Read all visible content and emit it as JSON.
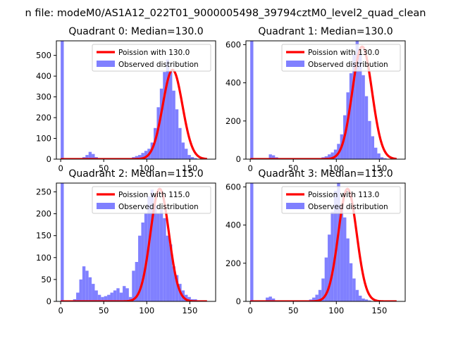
{
  "figure": {
    "suptitle": "n file: modeM0/AS1A12_022T01_9000005498_39794cztM0_level2_quad_clean"
  },
  "colors": {
    "poisson_line": "#ff0000",
    "observed_bars": "#8080ff",
    "axes": "#000000"
  },
  "chart_data": [
    {
      "type": "bar",
      "title": "Quadrant 0: Median=130.0",
      "xlim": [
        -5,
        180
      ],
      "ylim": [
        0,
        570
      ],
      "xticks": [
        0,
        50,
        100,
        150
      ],
      "yticks": [
        0,
        100,
        200,
        300,
        400,
        500
      ],
      "legend": {
        "placement": "top-right",
        "entries": [
          "Poission with 130.0",
          "Observed distribution"
        ]
      },
      "poisson_mean": 130.0,
      "poisson_peak": 430,
      "poisson_range": [
        0,
        170
      ],
      "observed": {
        "bin_width": 3.6,
        "bin_start": 0,
        "values": [
          570,
          0,
          0,
          0,
          0,
          0,
          0,
          10,
          20,
          35,
          25,
          10,
          5,
          0,
          0,
          0,
          0,
          0,
          0,
          0,
          0,
          0,
          5,
          10,
          15,
          20,
          30,
          40,
          50,
          80,
          150,
          250,
          340,
          420,
          480,
          420,
          330,
          240,
          150,
          80,
          50,
          20,
          10,
          5
        ]
      }
    },
    {
      "type": "bar",
      "title": "Quadrant 1: Median=130.0",
      "xlim": [
        -5,
        180
      ],
      "ylim": [
        0,
        620
      ],
      "xticks": [
        0,
        50,
        100,
        150
      ],
      "yticks": [
        0,
        200,
        400,
        600
      ],
      "legend": {
        "placement": "top-right",
        "entries": [
          "Poission with 130.0",
          "Observed distribution"
        ]
      },
      "poisson_mean": 130.0,
      "poisson_peak": 590,
      "poisson_range": [
        0,
        170
      ],
      "observed": {
        "bin_width": 3.6,
        "bin_start": 0,
        "values": [
          620,
          0,
          0,
          0,
          0,
          0,
          25,
          20,
          10,
          5,
          0,
          0,
          0,
          0,
          0,
          0,
          0,
          0,
          0,
          0,
          0,
          0,
          5,
          10,
          15,
          25,
          35,
          50,
          80,
          130,
          230,
          350,
          450,
          550,
          620,
          550,
          440,
          330,
          200,
          120,
          60,
          30,
          10,
          5
        ]
      }
    },
    {
      "type": "bar",
      "title": "Quadrant 2: Median=115.0",
      "xlim": [
        -5,
        180
      ],
      "ylim": [
        0,
        270
      ],
      "xticks": [
        0,
        50,
        100,
        150
      ],
      "yticks": [
        0,
        50,
        100,
        150,
        200,
        250
      ],
      "legend": {
        "placement": "top-right",
        "entries": [
          "Poission with 115.0",
          "Observed distribution"
        ]
      },
      "poisson_mean": 115.0,
      "poisson_peak": 257,
      "poisson_range": [
        0,
        170
      ],
      "observed": {
        "bin_width": 3.6,
        "bin_start": 0,
        "values": [
          270,
          0,
          0,
          0,
          5,
          20,
          50,
          80,
          70,
          55,
          40,
          25,
          15,
          10,
          12,
          15,
          20,
          25,
          30,
          20,
          35,
          30,
          10,
          70,
          90,
          150,
          180,
          200,
          240,
          255,
          220,
          200,
          210,
          190,
          150,
          130,
          80,
          60,
          40,
          25,
          15,
          10,
          5,
          5
        ]
      }
    },
    {
      "type": "bar",
      "title": "Quadrant 3: Median=113.0",
      "xlim": [
        -5,
        180
      ],
      "ylim": [
        0,
        620
      ],
      "xticks": [
        0,
        50,
        100,
        150
      ],
      "yticks": [
        0,
        200,
        400,
        600
      ],
      "legend": {
        "placement": "top-right",
        "entries": [
          "Poission with 113.0",
          "Observed distribution"
        ]
      },
      "poisson_mean": 113.0,
      "poisson_peak": 590,
      "poisson_range": [
        0,
        170
      ],
      "observed": {
        "bin_width": 3.6,
        "bin_start": 0,
        "values": [
          620,
          0,
          0,
          0,
          0,
          20,
          25,
          15,
          5,
          0,
          0,
          0,
          0,
          0,
          0,
          0,
          0,
          0,
          5,
          10,
          20,
          35,
          60,
          120,
          230,
          350,
          470,
          580,
          620,
          500,
          440,
          330,
          200,
          120,
          60,
          30,
          15,
          10,
          5,
          0,
          0,
          0,
          0,
          0
        ]
      }
    }
  ]
}
